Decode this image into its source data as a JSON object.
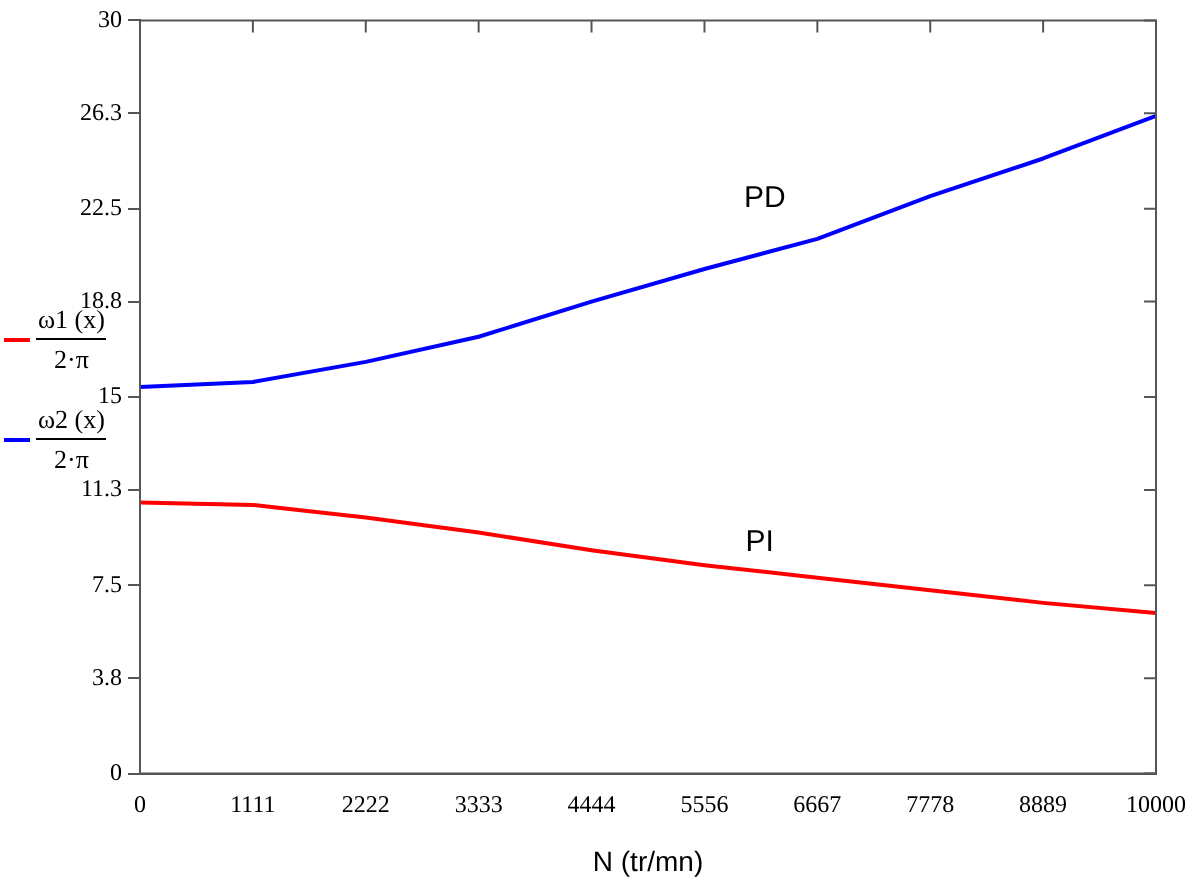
{
  "chart_data": {
    "type": "line",
    "xlabel": "N (tr/mn)",
    "x": [
      0,
      1111,
      2222,
      3333,
      4444,
      5556,
      6667,
      7778,
      8889,
      10000
    ],
    "series": [
      {
        "name": "ω1 (x) 2·π",
        "color": "#ff0000",
        "values": [
          10.8,
          10.7,
          10.2,
          9.6,
          8.9,
          8.3,
          7.8,
          7.3,
          6.8,
          6.4
        ]
      },
      {
        "name": "ω2 (x) 2·π",
        "color": "#0000ff",
        "values": [
          15.4,
          15.6,
          16.4,
          17.4,
          18.8,
          20.1,
          21.3,
          23.0,
          24.5,
          26.2
        ]
      }
    ],
    "xlim": [
      0,
      10000
    ],
    "xticks": [
      0,
      1111,
      2222,
      3333,
      4444,
      5556,
      6667,
      7778,
      8889,
      10000
    ],
    "ylim": [
      0,
      30
    ],
    "yticks": [
      0,
      3.8,
      7.5,
      11.3,
      15,
      18.8,
      22.5,
      26.3,
      30
    ],
    "annotations": [
      "PD",
      "PI"
    ],
    "grid": false,
    "legend": "left",
    "marker": "none",
    "line_style": "solid"
  }
}
